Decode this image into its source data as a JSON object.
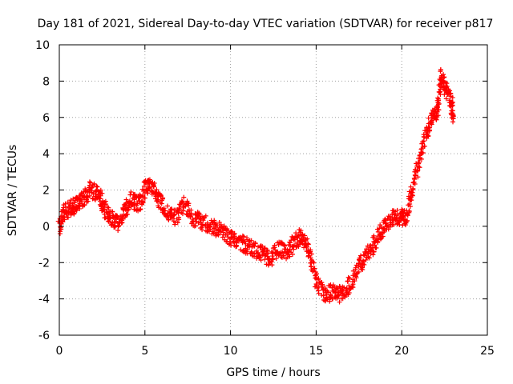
{
  "chart_data": {
    "type": "scatter",
    "title": "Day 181 of 2021, Sidereal Day-to-day VTEC variation (SDTVAR) for receiver p817",
    "xlabel": "GPS time / hours",
    "ylabel": "SDTVAR / TECUs",
    "xlim": [
      0,
      25
    ],
    "ylim": [
      -6,
      10
    ],
    "xticks": [
      0,
      5,
      10,
      15,
      20,
      25
    ],
    "yticks": [
      -6,
      -4,
      -2,
      0,
      2,
      4,
      6,
      8,
      10
    ],
    "grid": true,
    "marker": "+",
    "color": "#ff0000",
    "series": [
      {
        "name": "SDTVAR",
        "trend": [
          [
            0.0,
            0.0
          ],
          [
            0.3,
            0.8
          ],
          [
            0.7,
            1.0
          ],
          [
            1.0,
            1.2
          ],
          [
            1.4,
            1.5
          ],
          [
            1.8,
            2.0
          ],
          [
            2.3,
            1.8
          ],
          [
            2.6,
            1.0
          ],
          [
            3.0,
            0.5
          ],
          [
            3.4,
            0.2
          ],
          [
            3.8,
            0.8
          ],
          [
            4.2,
            1.5
          ],
          [
            4.6,
            1.2
          ],
          [
            5.0,
            2.0
          ],
          [
            5.4,
            2.3
          ],
          [
            5.8,
            1.5
          ],
          [
            6.3,
            0.8
          ],
          [
            6.8,
            0.5
          ],
          [
            7.3,
            1.2
          ],
          [
            7.8,
            0.5
          ],
          [
            8.3,
            0.3
          ],
          [
            8.8,
            0.0
          ],
          [
            9.3,
            -0.2
          ],
          [
            9.8,
            -0.5
          ],
          [
            10.3,
            -0.8
          ],
          [
            10.8,
            -1.0
          ],
          [
            11.3,
            -1.2
          ],
          [
            11.8,
            -1.5
          ],
          [
            12.3,
            -1.8
          ],
          [
            12.8,
            -1.2
          ],
          [
            13.3,
            -1.5
          ],
          [
            13.8,
            -0.8
          ],
          [
            14.2,
            -0.5
          ],
          [
            14.6,
            -1.5
          ],
          [
            15.0,
            -3.0
          ],
          [
            15.5,
            -3.8
          ],
          [
            16.0,
            -3.6
          ],
          [
            16.5,
            -3.8
          ],
          [
            17.0,
            -3.2
          ],
          [
            17.5,
            -2.2
          ],
          [
            18.0,
            -1.5
          ],
          [
            18.5,
            -0.8
          ],
          [
            19.0,
            0.0
          ],
          [
            19.5,
            0.5
          ],
          [
            20.0,
            0.5
          ],
          [
            20.3,
            0.5
          ],
          [
            20.6,
            2.0
          ],
          [
            21.0,
            3.5
          ],
          [
            21.4,
            5.0
          ],
          [
            21.8,
            6.0
          ],
          [
            22.1,
            6.5
          ],
          [
            22.3,
            8.3
          ],
          [
            22.6,
            7.5
          ],
          [
            22.9,
            6.8
          ],
          [
            23.0,
            6.0
          ]
        ]
      }
    ]
  }
}
